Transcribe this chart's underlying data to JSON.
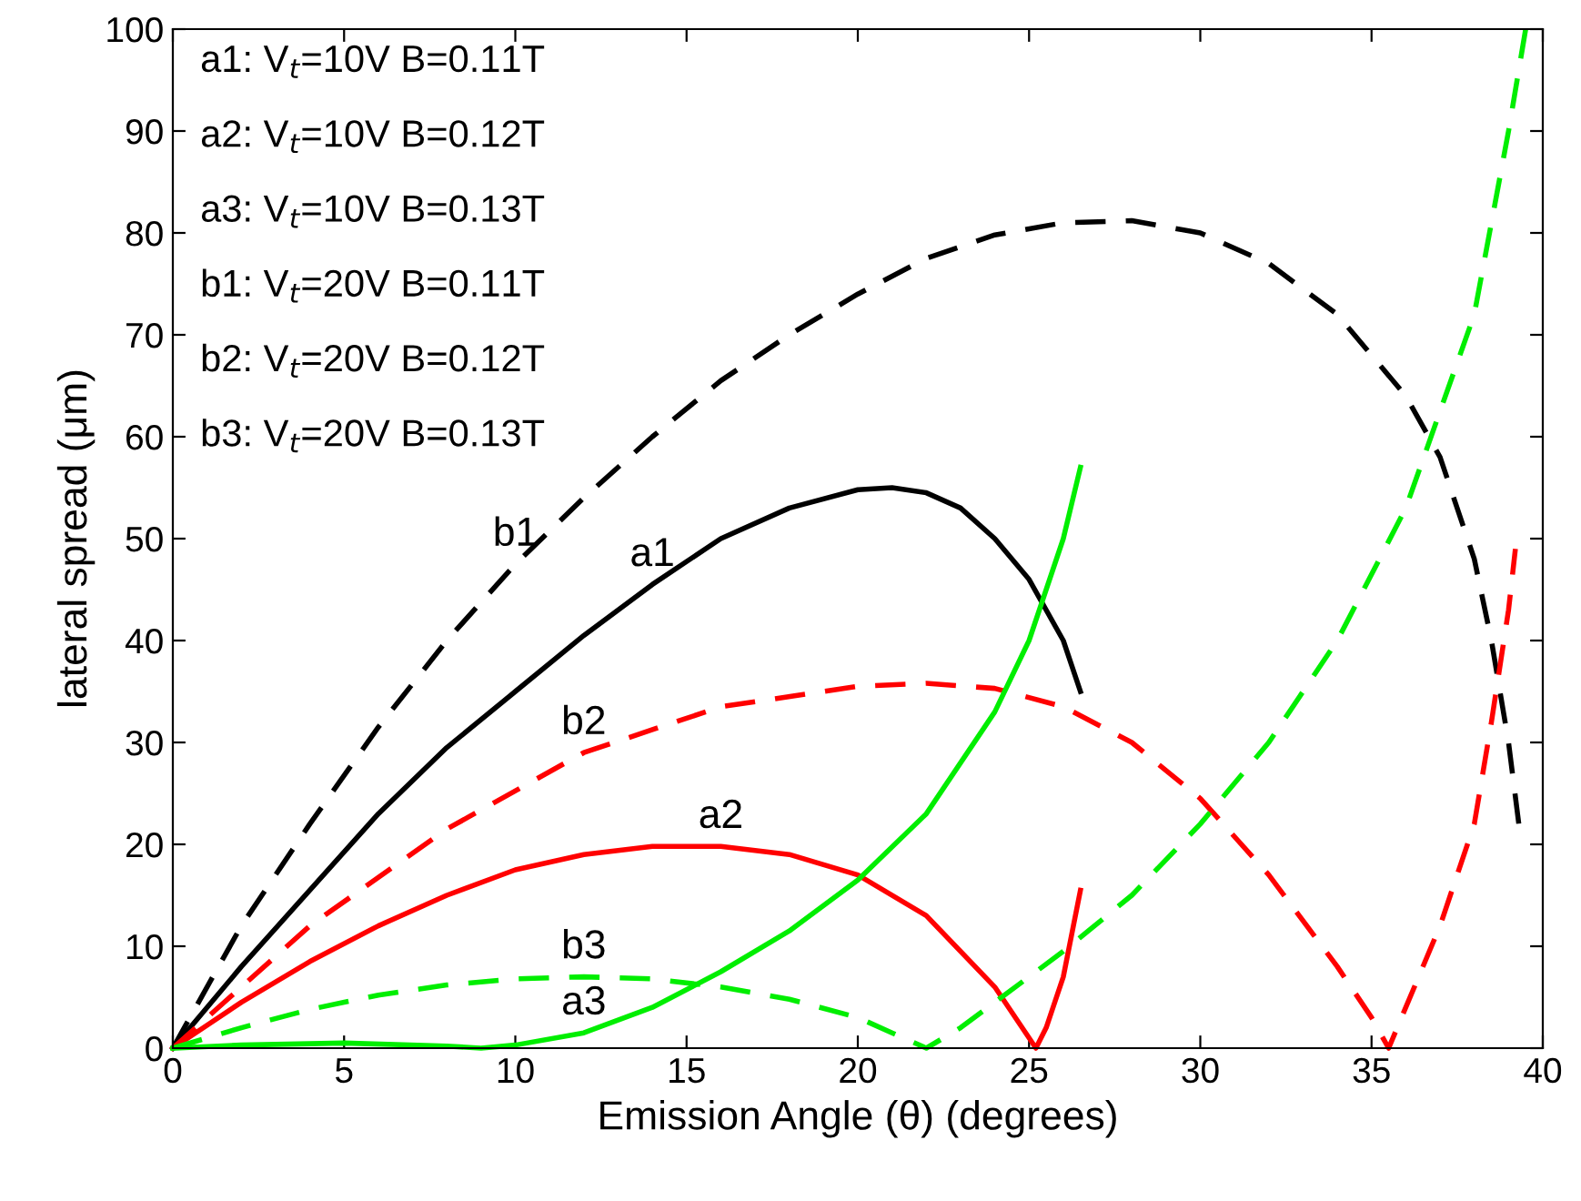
{
  "chart_data": {
    "type": "line",
    "xlabel": "Emission Angle (θ) (degrees)",
    "ylabel": "lateral spread (μm)",
    "xlim": [
      0,
      40
    ],
    "ylim": [
      0,
      100
    ],
    "xticks": [
      0,
      5,
      10,
      15,
      20,
      25,
      30,
      35,
      40
    ],
    "yticks": [
      0,
      10,
      20,
      30,
      40,
      50,
      60,
      70,
      80,
      90,
      100
    ],
    "grid": false,
    "legend": false,
    "marker": "none",
    "series": [
      {
        "color": "#000000",
        "line_style": "solid",
        "x": [
          0,
          2,
          4,
          6,
          8,
          10,
          12,
          14,
          16,
          18,
          20,
          21,
          22,
          23,
          24,
          25,
          26,
          26.5
        ],
        "values": [
          0,
          8,
          15.5,
          23,
          29.5,
          35,
          40.5,
          45.5,
          50,
          53,
          54.8,
          55,
          54.5,
          53,
          50,
          46,
          40,
          35
        ]
      },
      {
        "color": "#000000",
        "line_style": "dashed",
        "x": [
          0,
          2,
          4,
          6,
          8,
          10,
          12,
          14,
          16,
          18,
          20,
          22,
          24,
          26,
          28,
          30,
          32,
          34,
          36,
          37,
          38,
          38.5,
          39,
          39.3
        ],
        "values": [
          0,
          12,
          22,
          31.5,
          40,
          47.5,
          54,
          60,
          65.5,
          70,
          74,
          77.5,
          79.8,
          81,
          81.2,
          80,
          77,
          72,
          64,
          58,
          48,
          40,
          30,
          22
        ]
      },
      {
        "color": "#ff0000",
        "line_style": "solid",
        "x": [
          0,
          2,
          4,
          6,
          8,
          10,
          12,
          14,
          16,
          18,
          20,
          22,
          24,
          25,
          25.2,
          25.5,
          26,
          26.5
        ],
        "values": [
          0,
          4.5,
          8.5,
          12,
          15,
          17.5,
          19,
          19.8,
          19.8,
          19,
          17,
          13,
          6,
          1,
          0,
          2,
          7,
          15.5
        ]
      },
      {
        "color": "#ff0000",
        "line_style": "dashed",
        "x": [
          0,
          4,
          8,
          12,
          16,
          20,
          22,
          24,
          26,
          28,
          30,
          32,
          34,
          35,
          35.5,
          36,
          37,
          38,
          38.5,
          39,
          39.2
        ],
        "values": [
          0,
          12,
          21.5,
          29,
          33.5,
          35.5,
          35.8,
          35.3,
          33.5,
          30,
          24.5,
          17,
          8,
          3,
          0,
          4,
          12,
          22,
          32,
          43,
          49
        ]
      },
      {
        "color": "#00ee00",
        "line_style": "solid",
        "x": [
          0,
          2,
          5,
          8,
          9,
          10,
          12,
          14,
          16,
          18,
          20,
          22,
          24,
          25,
          26,
          26.5
        ],
        "values": [
          0,
          0.3,
          0.5,
          0.2,
          0,
          0.3,
          1.5,
          4,
          7.5,
          11.5,
          16.5,
          23,
          33,
          40,
          50,
          57
        ]
      },
      {
        "color": "#00ee00",
        "line_style": "dashed",
        "x": [
          0,
          2,
          4,
          6,
          8,
          10,
          12,
          14,
          16,
          18,
          20,
          21,
          22,
          23,
          24,
          26,
          28,
          30,
          32,
          34,
          36,
          38,
          39,
          39.5
        ],
        "values": [
          0,
          2,
          3.8,
          5.2,
          6.2,
          6.8,
          7,
          6.8,
          6,
          4.8,
          3,
          1.5,
          0,
          2,
          4.5,
          9.5,
          15,
          22,
          30,
          40,
          53,
          72,
          90,
          100
        ]
      }
    ],
    "annotations": [
      "a1: V$_{t}$=10V B=0.11T",
      "a2: V$_{t}$=10V B=0.12T",
      "a3: V$_{t}$=10V B=0.13T",
      "b1: V$_{t}$=20V B=0.11T",
      "b2: V$_{t}$=20V B=0.12T",
      "b3: V$_{t}$=20V B=0.13T",
      {
        "text": "b1",
        "x": 10,
        "y": 47.5
      },
      {
        "text": "a1",
        "x": 14,
        "y": 45.5
      },
      {
        "text": "b2",
        "x": 12,
        "y": 29
      },
      {
        "text": "a2",
        "x": 16,
        "y": 19.8
      },
      {
        "text": "b3",
        "x": 12,
        "y": 7
      },
      {
        "text": "a3",
        "x": 12,
        "y": 1.5
      }
    ]
  }
}
